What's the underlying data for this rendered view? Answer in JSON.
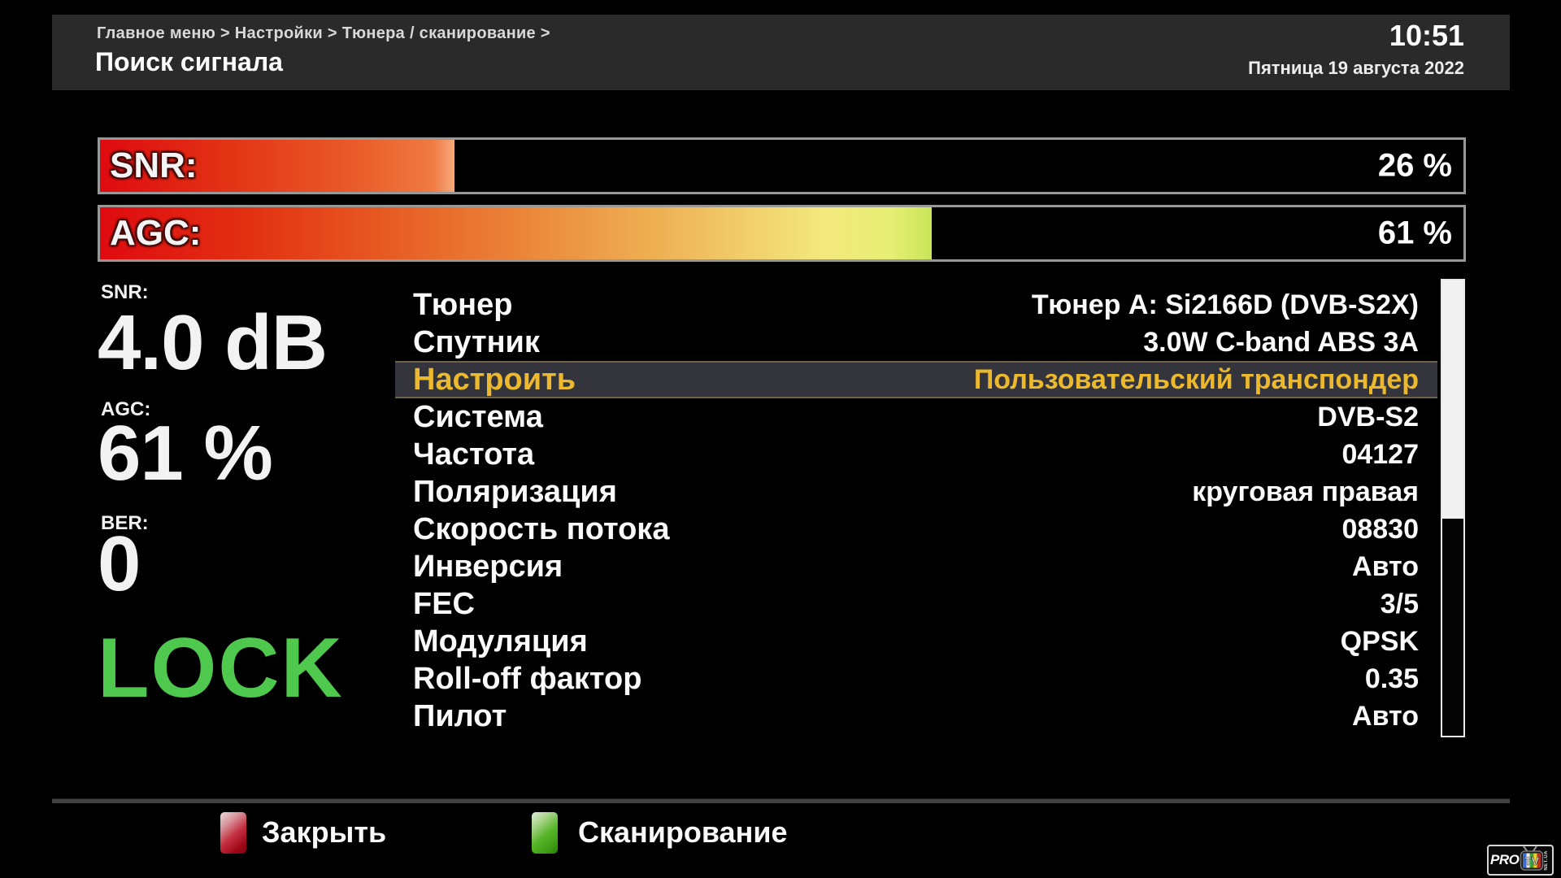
{
  "header": {
    "breadcrumb": "Главное меню > Настройки > Тюнера / сканирование >",
    "title": "Поиск сигнала",
    "time": "10:51",
    "date": "Пятница 19 августа 2022"
  },
  "signal_bars": [
    {
      "label": "SNR:",
      "value": "26 %",
      "percent": 26
    },
    {
      "label": "AGC:",
      "value": "61 %",
      "percent": 61
    }
  ],
  "stats": {
    "snr": {
      "label": "SNR:",
      "value": "4.0 dB"
    },
    "agc": {
      "label": "AGC:",
      "value": "61 %"
    },
    "ber": {
      "label": "BER:",
      "value": "0"
    },
    "lock": {
      "label": "LOCK"
    }
  },
  "settings_list": {
    "selected_index": 2,
    "items": [
      {
        "label": "Тюнер",
        "value": "Тюнер A: Si2166D (DVB-S2X)"
      },
      {
        "label": "Спутник",
        "value": "3.0W C-band ABS 3A"
      },
      {
        "label": "Настроить",
        "value": "Пользовательский транспондер"
      },
      {
        "label": "Система",
        "value": "DVB-S2"
      },
      {
        "label": "Частота",
        "value": "04127"
      },
      {
        "label": "Поляризация",
        "value": "круговая правая"
      },
      {
        "label": "Скорость потока",
        "value": "08830"
      },
      {
        "label": "Инверсия",
        "value": "Авто"
      },
      {
        "label": "FEC",
        "value": "3/5"
      },
      {
        "label": "Модуляция",
        "value": "QPSK"
      },
      {
        "label": "Roll-off фактор",
        "value": "0.35"
      },
      {
        "label": "Пилот",
        "value": "Авто"
      }
    ]
  },
  "footer": {
    "close_button": {
      "label": "Закрыть",
      "key_color": "#c42f3f"
    },
    "scan_button": {
      "label": "Сканирование",
      "key_color": "#57b428"
    }
  },
  "logo": {
    "pro": "PRO",
    "tv": "TV",
    "side": "NET.UA"
  },
  "colors": {
    "background": "#000000",
    "header_background": "#2a2a2a",
    "bar_border": "#989898",
    "bar_fill_red": "#df0a10",
    "bar_fill_orange": "#ef7b42",
    "bar_fill_yellow_green": "#c9e658",
    "selected_row_background": "#34343c",
    "selected_row_border": "#6d6147",
    "selected_text_gold": "#ecb92d",
    "lock_green": "#4ec94e"
  }
}
